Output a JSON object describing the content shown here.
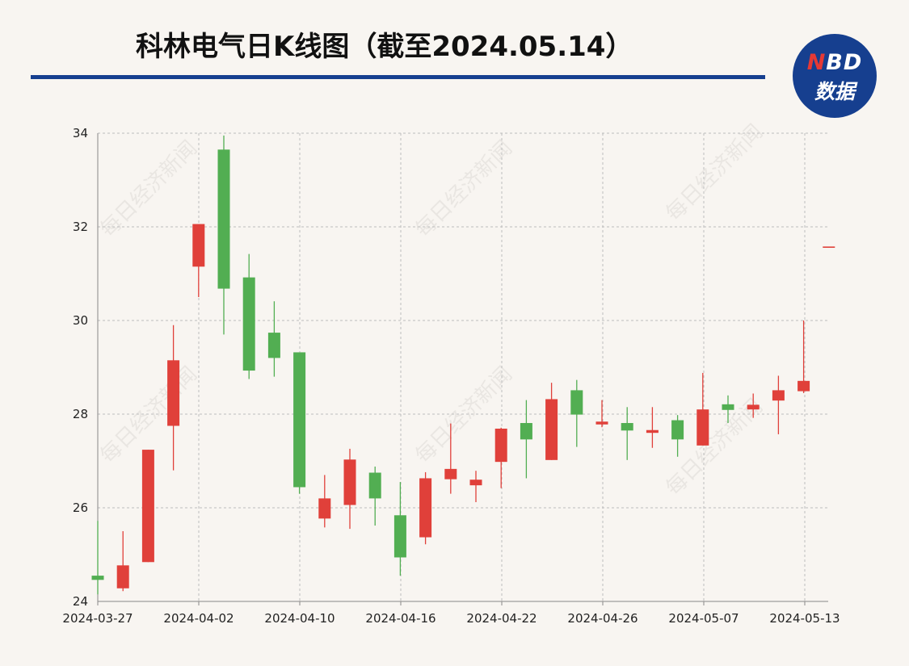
{
  "header": {
    "title": "科林电气日K线图（截至2024.05.14）"
  },
  "logo": {
    "top_n": "N",
    "top_rest": "BD",
    "bottom": "数据"
  },
  "watermark": "每日经济新闻",
  "colors": {
    "up": "#e0403a",
    "down": "#52ae52",
    "accent": "#163f8f",
    "grid": "#bdbdbd"
  },
  "chart_data": {
    "type": "candlestick",
    "title": "科林电气日K线图（截至2024.05.14）",
    "ylim": [
      24,
      34
    ],
    "yticks": [
      24,
      26,
      28,
      30,
      32,
      34
    ],
    "xticks": [
      "2024-03-27",
      "2024-04-02",
      "2024-04-10",
      "2024-04-16",
      "2024-04-22",
      "2024-04-26",
      "2024-05-07",
      "2024-05-13"
    ],
    "grid": true,
    "candles": [
      {
        "date": "2024-03-26",
        "open": 24.55,
        "close": 24.46,
        "high": 25.72,
        "low": 24.15
      },
      {
        "date": "2024-03-27",
        "open": 24.28,
        "close": 24.77,
        "high": 25.5,
        "low": 24.22
      },
      {
        "date": "2024-03-28",
        "open": 24.84,
        "close": 27.24,
        "high": 27.24,
        "low": 24.84
      },
      {
        "date": "2024-03-29",
        "open": 27.75,
        "close": 29.15,
        "high": 29.9,
        "low": 26.8
      },
      {
        "date": "2024-04-01",
        "open": 31.15,
        "close": 32.06,
        "high": 32.06,
        "low": 30.5
      },
      {
        "date": "2024-04-02",
        "open": 33.65,
        "close": 30.68,
        "high": 33.95,
        "low": 29.7
      },
      {
        "date": "2024-04-03",
        "open": 30.92,
        "close": 28.93,
        "high": 31.42,
        "low": 28.75
      },
      {
        "date": "2024-04-08",
        "open": 29.74,
        "close": 29.2,
        "high": 30.41,
        "low": 28.8
      },
      {
        "date": "2024-04-09",
        "open": 29.32,
        "close": 26.44,
        "high": 29.32,
        "low": 26.3
      },
      {
        "date": "2024-04-10",
        "open": 25.77,
        "close": 26.2,
        "high": 26.7,
        "low": 25.58
      },
      {
        "date": "2024-04-11",
        "open": 26.06,
        "close": 27.03,
        "high": 27.26,
        "low": 25.55
      },
      {
        "date": "2024-04-12",
        "open": 26.75,
        "close": 26.2,
        "high": 26.88,
        "low": 25.62
      },
      {
        "date": "2024-04-15",
        "open": 25.84,
        "close": 24.94,
        "high": 26.55,
        "low": 24.55
      },
      {
        "date": "2024-04-16",
        "open": 25.37,
        "close": 26.63,
        "high": 26.76,
        "low": 25.22
      },
      {
        "date": "2024-04-17",
        "open": 26.61,
        "close": 26.83,
        "high": 27.8,
        "low": 26.3
      },
      {
        "date": "2024-04-18",
        "open": 26.48,
        "close": 26.6,
        "high": 26.79,
        "low": 26.12
      },
      {
        "date": "2024-04-19",
        "open": 26.98,
        "close": 27.69,
        "high": 27.71,
        "low": 26.42
      },
      {
        "date": "2024-04-22",
        "open": 27.81,
        "close": 27.46,
        "high": 28.3,
        "low": 26.63
      },
      {
        "date": "2024-04-23",
        "open": 27.02,
        "close": 28.32,
        "high": 28.67,
        "low": 27.02
      },
      {
        "date": "2024-04-24",
        "open": 28.51,
        "close": 27.99,
        "high": 28.73,
        "low": 27.3
      },
      {
        "date": "2024-04-25",
        "open": 27.78,
        "close": 27.84,
        "high": 28.3,
        "low": 27.72
      },
      {
        "date": "2024-04-26",
        "open": 27.81,
        "close": 27.65,
        "high": 28.15,
        "low": 27.02
      },
      {
        "date": "2024-04-29",
        "open": 27.6,
        "close": 27.66,
        "high": 28.15,
        "low": 27.28
      },
      {
        "date": "2024-04-30",
        "open": 27.87,
        "close": 27.46,
        "high": 27.98,
        "low": 27.09
      },
      {
        "date": "2024-05-06",
        "open": 27.33,
        "close": 28.1,
        "high": 28.88,
        "low": 27.33
      },
      {
        "date": "2024-05-07",
        "open": 28.21,
        "close": 28.09,
        "high": 28.4,
        "low": 27.81
      },
      {
        "date": "2024-05-08",
        "open": 28.1,
        "close": 28.2,
        "high": 28.44,
        "low": 27.92
      },
      {
        "date": "2024-05-09",
        "open": 28.29,
        "close": 28.51,
        "high": 28.82,
        "low": 27.57
      },
      {
        "date": "2024-05-10",
        "open": 28.49,
        "close": 28.71,
        "high": 30.0,
        "low": 28.45
      },
      {
        "date": "2024-05-13",
        "open": 31.58,
        "close": 31.58,
        "high": 31.58,
        "low": 31.58
      }
    ]
  }
}
